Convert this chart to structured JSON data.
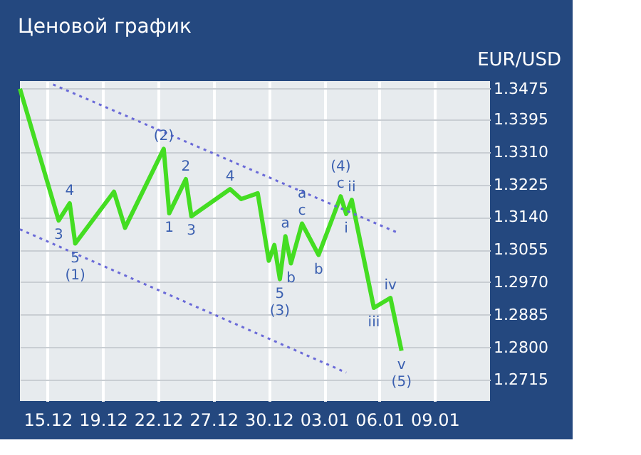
{
  "chart_data": {
    "type": "line",
    "title": "Ценовой график",
    "subtitle": "EUR/USD",
    "categories": [
      null,
      null,
      null,
      null,
      null,
      "15.12",
      null,
      null,
      null,
      null,
      null,
      null,
      null,
      null,
      null,
      "19.12",
      null,
      null,
      null,
      null,
      null,
      null,
      null,
      null,
      null,
      "22.12",
      null,
      null,
      null,
      null,
      null,
      null,
      null,
      null,
      null,
      "27.12",
      null,
      null,
      null,
      null,
      null,
      null,
      null,
      null,
      null,
      "30.12",
      null,
      null,
      null,
      null,
      null,
      null,
      null,
      null,
      null,
      "03.01",
      null,
      null,
      null,
      null,
      null,
      null,
      null,
      null,
      null,
      "06.01",
      null,
      null,
      null,
      null,
      null,
      null,
      null,
      null,
      null,
      "09.01",
      null,
      null,
      null,
      null,
      null,
      null,
      null,
      null,
      null,
      null
    ],
    "ylim": [
      1.266,
      1.3495
    ],
    "yticks": [
      1.3475,
      1.3395,
      {
        "value": 1.331,
        "label": "1.3310"
      },
      1.3225,
      {
        "value": 1.314,
        "label": "1.3140"
      },
      1.3055,
      {
        "value": 1.297,
        "label": "1.2970"
      },
      1.2885,
      {
        "value": 1.28,
        "label": "1.2800"
      },
      1.2715
    ],
    "grid": true,
    "marker": "none",
    "line_style": "solid",
    "series": [
      {
        "color": "#44dd22",
        "values": [
          1.3475,
          null,
          null,
          null,
          null,
          null,
          null,
          1.3131,
          null,
          1.3176,
          1.3071,
          null,
          null,
          null,
          null,
          null,
          null,
          1.3206,
          null,
          1.3112,
          null,
          null,
          null,
          null,
          null,
          null,
          1.3318,
          1.315,
          null,
          null,
          1.3239,
          1.3142,
          null,
          null,
          null,
          null,
          null,
          null,
          1.3213,
          null,
          1.3187,
          null,
          null,
          1.3202,
          null,
          1.3026,
          1.3067,
          1.2978,
          1.309,
          1.3019,
          null,
          1.3123,
          null,
          null,
          1.3041,
          null,
          null,
          null,
          1.3194,
          1.3148,
          1.3185,
          null,
          null,
          null,
          1.2903,
          null,
          null,
          1.2929,
          null,
          1.2791,
          null,
          null,
          null,
          null,
          null,
          null,
          null,
          null,
          null,
          null,
          null,
          null,
          null,
          null,
          null,
          null
        ]
      },
      {
        "color": "#6a6ad8",
        "line_style": "dotted",
        "values": [
          null,
          null,
          null,
          null,
          null,
          null,
          1.3486,
          null,
          null,
          null,
          null,
          null,
          null,
          null,
          null,
          null,
          null,
          null,
          null,
          null,
          null,
          null,
          null,
          null,
          null,
          null,
          null,
          null,
          null,
          null,
          null,
          null,
          null,
          null,
          null,
          null,
          null,
          null,
          null,
          null,
          null,
          null,
          null,
          null,
          null,
          null,
          null,
          null,
          null,
          null,
          null,
          null,
          null,
          null,
          null,
          null,
          null,
          null,
          null,
          null,
          null,
          null,
          null,
          null,
          null,
          null,
          null,
          null,
          1.3101,
          null,
          null,
          null,
          null,
          null,
          null,
          null,
          null,
          null,
          null,
          null,
          null,
          null,
          null,
          null,
          null,
          null
        ]
      },
      {
        "color": "#6a6ad8",
        "line_style": "dotted",
        "values": [
          1.3108,
          null,
          null,
          null,
          null,
          null,
          null,
          null,
          null,
          null,
          null,
          null,
          null,
          null,
          null,
          null,
          null,
          null,
          null,
          null,
          null,
          null,
          null,
          null,
          null,
          null,
          null,
          null,
          null,
          null,
          null,
          null,
          null,
          null,
          null,
          null,
          null,
          null,
          null,
          null,
          null,
          null,
          null,
          null,
          null,
          null,
          null,
          null,
          null,
          null,
          null,
          null,
          null,
          null,
          null,
          null,
          null,
          null,
          null,
          1.2734,
          null,
          null,
          null,
          null,
          null,
          null,
          null,
          null,
          null,
          null,
          null,
          null,
          null,
          null,
          null,
          null,
          null,
          null,
          null,
          null,
          null,
          null,
          null,
          null,
          null,
          null
        ]
      }
    ],
    "annotations": [
      {
        "text": "3",
        "y": 1.3131
      },
      {
        "text": "4",
        "y": 1.3176
      },
      {
        "text": "5",
        "y": 1.3071
      },
      {
        "text": "(1)",
        "y": 1.3071
      },
      {
        "text": "(2)",
        "y": 1.3318
      },
      {
        "text": "1",
        "y": 1.315
      },
      {
        "text": "2",
        "y": 1.3239
      },
      {
        "text": "3",
        "y": 1.3142
      },
      {
        "text": "4",
        "y": 1.3213
      },
      {
        "text": "5",
        "y": 1.2978
      },
      {
        "text": "(3)",
        "y": 1.2978
      },
      {
        "text": "a",
        "y": 1.309
      },
      {
        "text": "b",
        "y": 1.3019
      },
      {
        "text": "a",
        "y": 1.3123
      },
      {
        "text": "c",
        "y": 1.3123
      },
      {
        "text": "b",
        "y": 1.3041
      },
      {
        "text": "(4)",
        "y": 1.3194
      },
      {
        "text": "c",
        "y": 1.3194
      },
      {
        "text": "i",
        "y": 1.3148
      },
      {
        "text": "ii",
        "y": 1.3185
      },
      {
        "text": "iii",
        "y": 1.2903
      },
      {
        "text": "iv",
        "y": 1.2929
      },
      {
        "text": "v",
        "y": 1.2791
      },
      {
        "text": "(5)",
        "y": 1.2791
      }
    ]
  }
}
